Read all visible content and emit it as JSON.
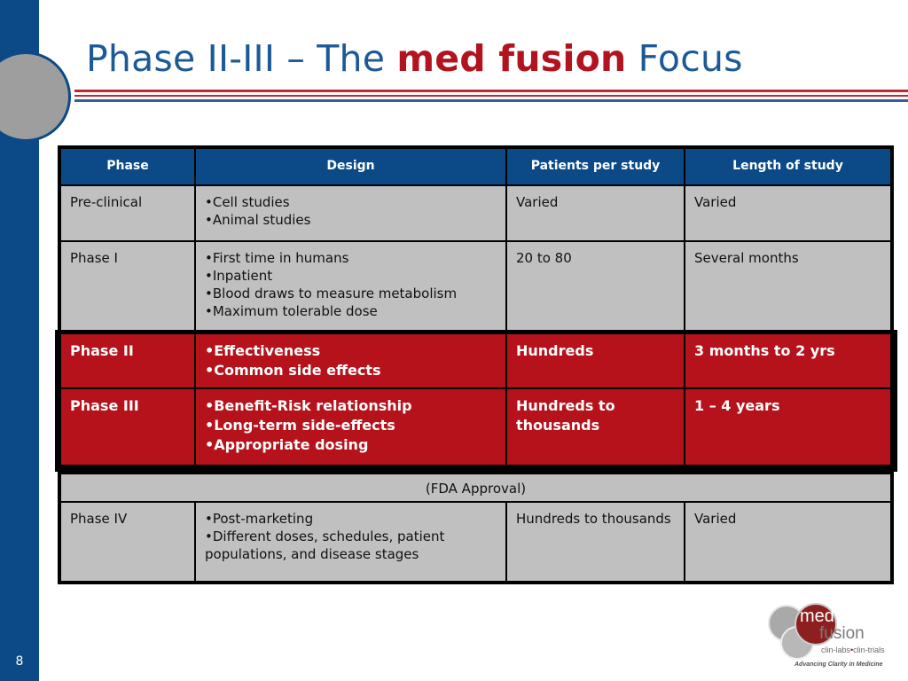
{
  "slide": {
    "title_prefix": "Phase II-III – The ",
    "title_brand": "med fusion",
    "title_suffix": " Focus",
    "number": "8"
  },
  "table": {
    "headers": [
      "Phase",
      "Design",
      "Patients per study",
      "Length of study"
    ],
    "rows": [
      {
        "phase": "Pre-clinical",
        "design": [
          "Cell studies",
          "Animal studies"
        ],
        "patients": "Varied",
        "length": "Varied"
      },
      {
        "phase": "Phase I",
        "design": [
          "First time in humans",
          "Inpatient",
          "Blood draws to measure metabolism",
          "Maximum tolerable dose"
        ],
        "patients": "20 to 80",
        "length": "Several months"
      },
      {
        "phase": "Phase II",
        "design": [
          "Effectiveness",
          "Common side effects"
        ],
        "patients": "Hundreds",
        "length": "3 months to 2 yrs"
      },
      {
        "phase": "Phase III",
        "design": [
          "Benefit-Risk relationship",
          "Long-term side-effects",
          "Appropriate dosing"
        ],
        "patients": "Hundreds to thousands",
        "length": "1 – 4 years"
      },
      {
        "phase": "Phase IV",
        "design": [
          "Post-marketing",
          "Different doses, schedules, patient populations, and disease stages"
        ],
        "patients": "Hundreds to thousands",
        "length": "Varied"
      }
    ],
    "approval_note": "(FDA  Approval)"
  },
  "logo": {
    "med": "med",
    "fusion": "fusion",
    "sub_left": "clin-labs",
    "sub_dot": "•",
    "sub_right": "clin-trials",
    "tagline": "Advancing Clarity in Medicine"
  },
  "colors": {
    "sidebar": "#0b4a86",
    "title": "#1c5a97",
    "brand_red": "#b3121f",
    "header_blue": "#0b4a86",
    "highlight_red": "#b5121b",
    "cell_gray": "#c0c0c0"
  }
}
